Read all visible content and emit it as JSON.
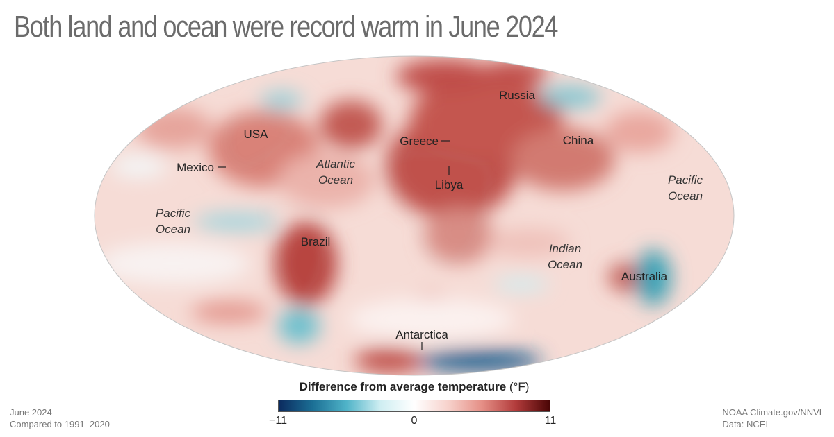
{
  "title": "Both land and ocean were record warm in June 2024",
  "map": {
    "projection": "Mollweide (whole world)",
    "countries": {
      "usa": "USA",
      "mexico": "Mexico",
      "brazil": "Brazil",
      "greece": "Greece",
      "libya": "Libya",
      "russia": "Russia",
      "china": "China",
      "australia": "Australia",
      "antarctica": "Antarctica"
    },
    "oceans": {
      "atlantic_line1": "Atlantic",
      "atlantic_line2": "Ocean",
      "pacific_west_line1": "Pacific",
      "pacific_west_line2": "Ocean",
      "pacific_east_line1": "Pacific",
      "pacific_east_line2": "Ocean",
      "indian_line1": "Indian",
      "indian_line2": "Ocean"
    }
  },
  "legend": {
    "title": "Difference from average temperature",
    "unit": " (°F)",
    "min_label": "−11",
    "mid_label": "0",
    "max_label": "11",
    "range": [
      -11,
      11
    ],
    "colors": [
      "#0b2a5e",
      "#1b6f95",
      "#4fb3c8",
      "#cfeef2",
      "#ffffff",
      "#f7d2cc",
      "#e58f86",
      "#b23b3b",
      "#4a0505"
    ]
  },
  "footer": {
    "period": "June 2024",
    "baseline": "Compared to 1991–2020",
    "credit": "NOAA Climate.gov/NNVL",
    "source": "Data: NCEI"
  },
  "colors": {
    "title": "#6b6b6b",
    "warm": "#b23b3b",
    "cool": "#1b6f95"
  }
}
